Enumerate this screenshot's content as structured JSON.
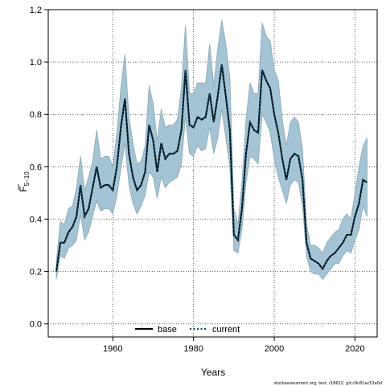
{
  "chart_data": {
    "type": "line",
    "xlabel": "Years",
    "ylabel": "F",
    "ylabel_bar": true,
    "ylabel_subscript": "5−10",
    "xlim": [
      1944,
      2025.5
    ],
    "ylim": [
      -0.05,
      1.2
    ],
    "x_ticks": [
      1960,
      1980,
      2000,
      2020
    ],
    "x_tick_labels": [
      "1960",
      "1980",
      "2000",
      "2020"
    ],
    "y_ticks": [
      0.0,
      0.2,
      0.4,
      0.6,
      0.8,
      1.0,
      1.2
    ],
    "y_tick_labels": [
      "0.0",
      "0.2",
      "0.4",
      "0.6",
      "0.8",
      "1.0",
      "1.2"
    ],
    "grid": true,
    "legend_position": "bottom",
    "colors": {
      "band_fill": "#a3c4d4",
      "band_edge": "#8aa7b5",
      "base": "#000000",
      "current": "#0b4a6e"
    },
    "years": [
      1946,
      1947,
      1948,
      1949,
      1950,
      1951,
      1952,
      1953,
      1954,
      1955,
      1956,
      1957,
      1958,
      1959,
      1960,
      1961,
      1962,
      1963,
      1964,
      1965,
      1966,
      1967,
      1968,
      1969,
      1970,
      1971,
      1972,
      1973,
      1974,
      1975,
      1976,
      1977,
      1978,
      1979,
      1980,
      1981,
      1982,
      1983,
      1984,
      1985,
      1986,
      1987,
      1988,
      1989,
      1990,
      1991,
      1992,
      1993,
      1994,
      1995,
      1996,
      1997,
      1998,
      1999,
      2000,
      2001,
      2002,
      2003,
      2004,
      2005,
      2006,
      2007,
      2008,
      2009,
      2010,
      2011,
      2012,
      2013,
      2014,
      2015,
      2016,
      2017,
      2018,
      2019,
      2020,
      2021,
      2022,
      2023
    ],
    "series": [
      {
        "name": "base",
        "values": [
          0.2,
          0.31,
          0.31,
          0.35,
          0.37,
          0.41,
          0.53,
          0.41,
          0.44,
          0.52,
          0.6,
          0.52,
          0.53,
          0.53,
          0.51,
          0.6,
          0.75,
          0.86,
          0.65,
          0.56,
          0.51,
          0.53,
          0.58,
          0.76,
          0.7,
          0.58,
          0.69,
          0.63,
          0.65,
          0.65,
          0.66,
          0.74,
          0.97,
          0.76,
          0.75,
          0.79,
          0.78,
          0.79,
          0.88,
          0.77,
          0.87,
          0.99,
          0.87,
          0.74,
          0.34,
          0.32,
          0.44,
          0.65,
          0.77,
          0.74,
          0.73,
          0.97,
          0.93,
          0.9,
          0.8,
          0.73,
          0.63,
          0.55,
          0.63,
          0.65,
          0.64,
          0.55,
          0.31,
          0.25,
          0.24,
          0.23,
          0.21,
          0.24,
          0.26,
          0.27,
          0.29,
          0.31,
          0.34,
          0.34,
          0.41,
          0.46,
          0.55,
          0.54
        ]
      },
      {
        "name": "current",
        "values": [
          0.2,
          0.31,
          0.31,
          0.35,
          0.37,
          0.41,
          0.53,
          0.41,
          0.44,
          0.52,
          0.6,
          0.52,
          0.53,
          0.53,
          0.51,
          0.6,
          0.75,
          0.86,
          0.65,
          0.56,
          0.51,
          0.53,
          0.58,
          0.76,
          0.7,
          0.58,
          0.69,
          0.63,
          0.65,
          0.65,
          0.66,
          0.74,
          0.97,
          0.76,
          0.75,
          0.79,
          0.78,
          0.79,
          0.88,
          0.77,
          0.87,
          0.99,
          0.87,
          0.74,
          0.34,
          0.32,
          0.44,
          0.65,
          0.77,
          0.74,
          0.73,
          0.97,
          0.93,
          0.9,
          0.8,
          0.73,
          0.63,
          0.55,
          0.63,
          0.65,
          0.64,
          0.55,
          0.31,
          0.25,
          0.24,
          0.23,
          0.21,
          0.24,
          0.26,
          0.27,
          0.29,
          0.31,
          0.34,
          0.34,
          0.41,
          0.46,
          0.55,
          0.54
        ]
      }
    ],
    "band_lower": [
      0.17,
      0.26,
      0.25,
      0.29,
      0.3,
      0.32,
      0.42,
      0.32,
      0.35,
      0.41,
      0.47,
      0.43,
      0.44,
      0.44,
      0.42,
      0.49,
      0.59,
      0.69,
      0.53,
      0.46,
      0.42,
      0.45,
      0.49,
      0.58,
      0.56,
      0.48,
      0.56,
      0.52,
      0.54,
      0.55,
      0.56,
      0.61,
      0.79,
      0.65,
      0.64,
      0.68,
      0.66,
      0.67,
      0.75,
      0.65,
      0.71,
      0.82,
      0.71,
      0.6,
      0.28,
      0.27,
      0.36,
      0.54,
      0.64,
      0.63,
      0.61,
      0.8,
      0.77,
      0.73,
      0.63,
      0.56,
      0.51,
      0.46,
      0.53,
      0.55,
      0.54,
      0.45,
      0.26,
      0.2,
      0.19,
      0.19,
      0.17,
      0.19,
      0.21,
      0.23,
      0.23,
      0.26,
      0.28,
      0.27,
      0.32,
      0.36,
      0.45,
      0.41
    ],
    "band_upper": [
      0.24,
      0.39,
      0.38,
      0.44,
      0.45,
      0.52,
      0.64,
      0.51,
      0.56,
      0.62,
      0.74,
      0.63,
      0.64,
      0.64,
      0.6,
      0.73,
      0.9,
      1.03,
      0.79,
      0.69,
      0.61,
      0.62,
      0.68,
      0.91,
      0.84,
      0.7,
      0.82,
      0.75,
      0.76,
      0.76,
      0.78,
      0.9,
      1.14,
      0.88,
      0.88,
      0.92,
      0.92,
      0.92,
      1.07,
      0.91,
      1.05,
      1.16,
      1.07,
      0.94,
      0.44,
      0.38,
      0.54,
      0.78,
      0.92,
      0.88,
      0.88,
      1.15,
      1.1,
      1.08,
      0.97,
      0.93,
      0.78,
      0.68,
      0.77,
      0.79,
      0.77,
      0.67,
      0.38,
      0.3,
      0.3,
      0.29,
      0.27,
      0.31,
      0.33,
      0.35,
      0.36,
      0.4,
      0.42,
      0.4,
      0.5,
      0.6,
      0.68,
      0.71
    ]
  },
  "footer": {
    "text": "stockassessment.org, test, r18622, git:c9c81ac53a0d"
  }
}
